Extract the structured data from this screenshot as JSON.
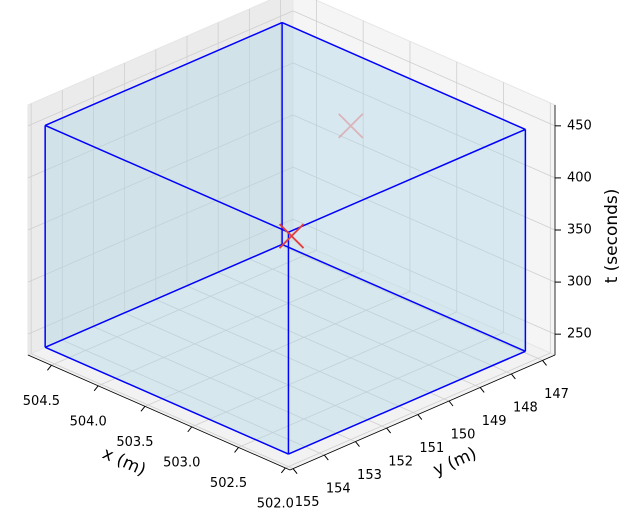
{
  "chart_data": {
    "type": "scatter3d",
    "xlabel": "x (m)",
    "ylabel": "y (m)",
    "zlabel": "t (seconds)",
    "xlim": [
      501.95,
      504.75
    ],
    "ylim": [
      146.6,
      155.1
    ],
    "zlim": [
      230,
      470
    ],
    "xticks": [
      {
        "value": 502.0,
        "label": "502.0"
      },
      {
        "value": 502.5,
        "label": "502.5"
      },
      {
        "value": 503.0,
        "label": "503.0"
      },
      {
        "value": 503.5,
        "label": "503.5"
      },
      {
        "value": 504.0,
        "label": "504.0"
      },
      {
        "value": 504.5,
        "label": "504.5"
      }
    ],
    "yticks": [
      147,
      148,
      149,
      150,
      151,
      152,
      153,
      154,
      155
    ],
    "zticks": [
      250,
      300,
      350,
      400,
      450
    ],
    "grid": true,
    "box": {
      "x": [
        502.0,
        504.6
      ],
      "y": [
        147.4,
        155.0
      ],
      "t": [
        242,
        455
      ],
      "color": "#0000ff",
      "fill": "#add8e6"
    },
    "series": [
      {
        "marker": "x",
        "color": "#e23b3b",
        "x": [
          502.0,
          503.2
        ],
        "y": [
          154.9,
          149.4
        ],
        "t": [
          450,
          437
        ]
      }
    ]
  }
}
